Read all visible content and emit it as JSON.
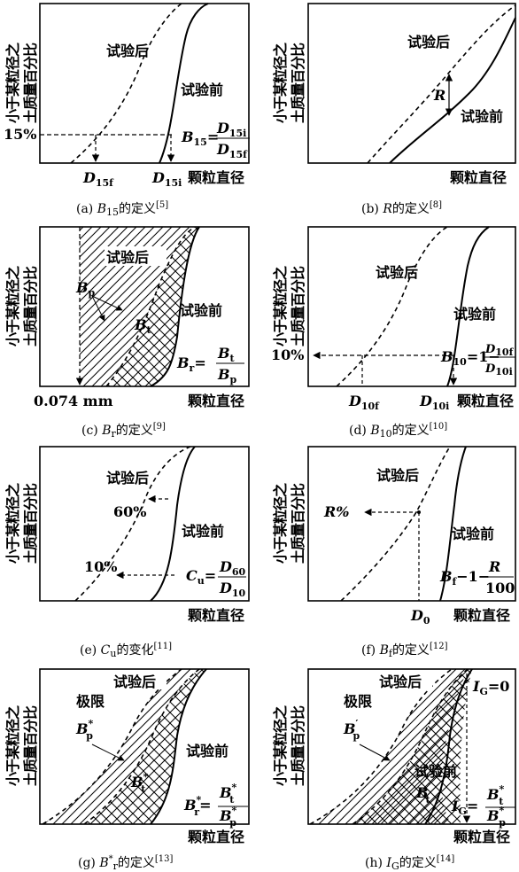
{
  "common": {
    "y_axis_line1": "小于某粒径之",
    "y_axis_line2": "土质量百分比",
    "x_axis": "颗粒直径",
    "after_test": "试验后",
    "before_test": "试验前",
    "limit": "极限"
  },
  "panels": [
    {
      "id": "a",
      "caption_prefix": "(a)",
      "caption_sym": "B",
      "caption_sub": "15",
      "caption_text": "的定义",
      "caption_ref": "[5]",
      "pct_label": "15%",
      "x_label_f": "D",
      "x_label_f_sub": "15f",
      "x_label_i": "D",
      "x_label_i_sub": "15i",
      "formula_lhs": "B",
      "formula_lhs_sub": "15",
      "formula_num": "D",
      "formula_num_sub": "15i",
      "formula_den": "D",
      "formula_den_sub": "15f"
    },
    {
      "id": "b",
      "caption_prefix": "(b)",
      "caption_sym": "R",
      "caption_text": "的定义",
      "caption_ref": "[8]",
      "r_label": "R"
    },
    {
      "id": "c",
      "caption_prefix": "(c)",
      "caption_sym": "B",
      "caption_sub": "r",
      "caption_text": "的定义",
      "caption_ref": "[9]",
      "x_mark": "0.074 mm",
      "bp_label": "B",
      "bp_sub": "p",
      "bt_label": "B",
      "bt_sub": "t",
      "formula_lhs": "B",
      "formula_lhs_sub": "r",
      "formula_num": "B",
      "formula_num_sub": "t",
      "formula_den": "B",
      "formula_den_sub": "p"
    },
    {
      "id": "d",
      "caption_prefix": "(d)",
      "caption_sym": "B",
      "caption_sub": "10",
      "caption_text": "的定义",
      "caption_ref": "[10]",
      "pct_label": "10%",
      "x_label_f": "D",
      "x_label_f_sub": "10f",
      "x_label_i": "D",
      "x_label_i_sub": "10i",
      "formula_lhs": "B",
      "formula_lhs_sub": "10",
      "formula_mid": "=1−",
      "formula_num": "D",
      "formula_num_sub": "10f",
      "formula_den": "D",
      "formula_den_sub": "10i"
    },
    {
      "id": "e",
      "caption_prefix": "(e)",
      "caption_sym": "C",
      "caption_sub": "u",
      "caption_text": "的变化",
      "caption_ref": "[11]",
      "pct_60": "60%",
      "pct_10": "10%",
      "formula_lhs": "C",
      "formula_lhs_sub": "u",
      "formula_num": "D",
      "formula_num_sub": "60",
      "formula_den": "D",
      "formula_den_sub": "10"
    },
    {
      "id": "f",
      "caption_prefix": "(f)",
      "caption_sym": "B",
      "caption_sub": "f",
      "caption_text": "的定义",
      "caption_ref": "[12]",
      "r_pct": "R%",
      "x_mark": "D",
      "x_mark_sub": "0",
      "formula_lhs": "B",
      "formula_lhs_sub": "f",
      "formula_mid": "−1−",
      "formula_num": "R",
      "formula_den": "100"
    },
    {
      "id": "g",
      "caption_prefix": "(g)",
      "caption_sym": "B",
      "caption_sup": "*",
      "caption_sub": "r",
      "caption_text": "的定义",
      "caption_ref": "[13]",
      "bp_label": "B",
      "bp_sup": "*",
      "bp_sub": "p",
      "bt_label": "B",
      "bt_sup": "*",
      "bt_sub": "t",
      "formula_lhs": "B",
      "formula_lhs_sup": "*",
      "formula_lhs_sub": "r",
      "formula_num": "B",
      "formula_num_sup": "*",
      "formula_num_sub": "t",
      "formula_den": "B",
      "formula_den_sup": "*",
      "formula_den_sub": "p"
    },
    {
      "id": "h",
      "caption_prefix": "(h)",
      "caption_sym": "I",
      "caption_sub": "G",
      "caption_text": "的定义",
      "caption_ref": "[14]",
      "ig_zero": "=0",
      "bp_label": "B",
      "bp_sup": "′",
      "bp_sub": "p",
      "bt_label": "B",
      "bt_sup": "′",
      "bt_sub": "t",
      "ig_sym": "I",
      "ig_sub": "G",
      "formula_num": "B",
      "formula_num_sup": "*",
      "formula_num_sub": "t",
      "formula_den": "B",
      "formula_den_sup": "*",
      "formula_den_sub": "p"
    }
  ]
}
